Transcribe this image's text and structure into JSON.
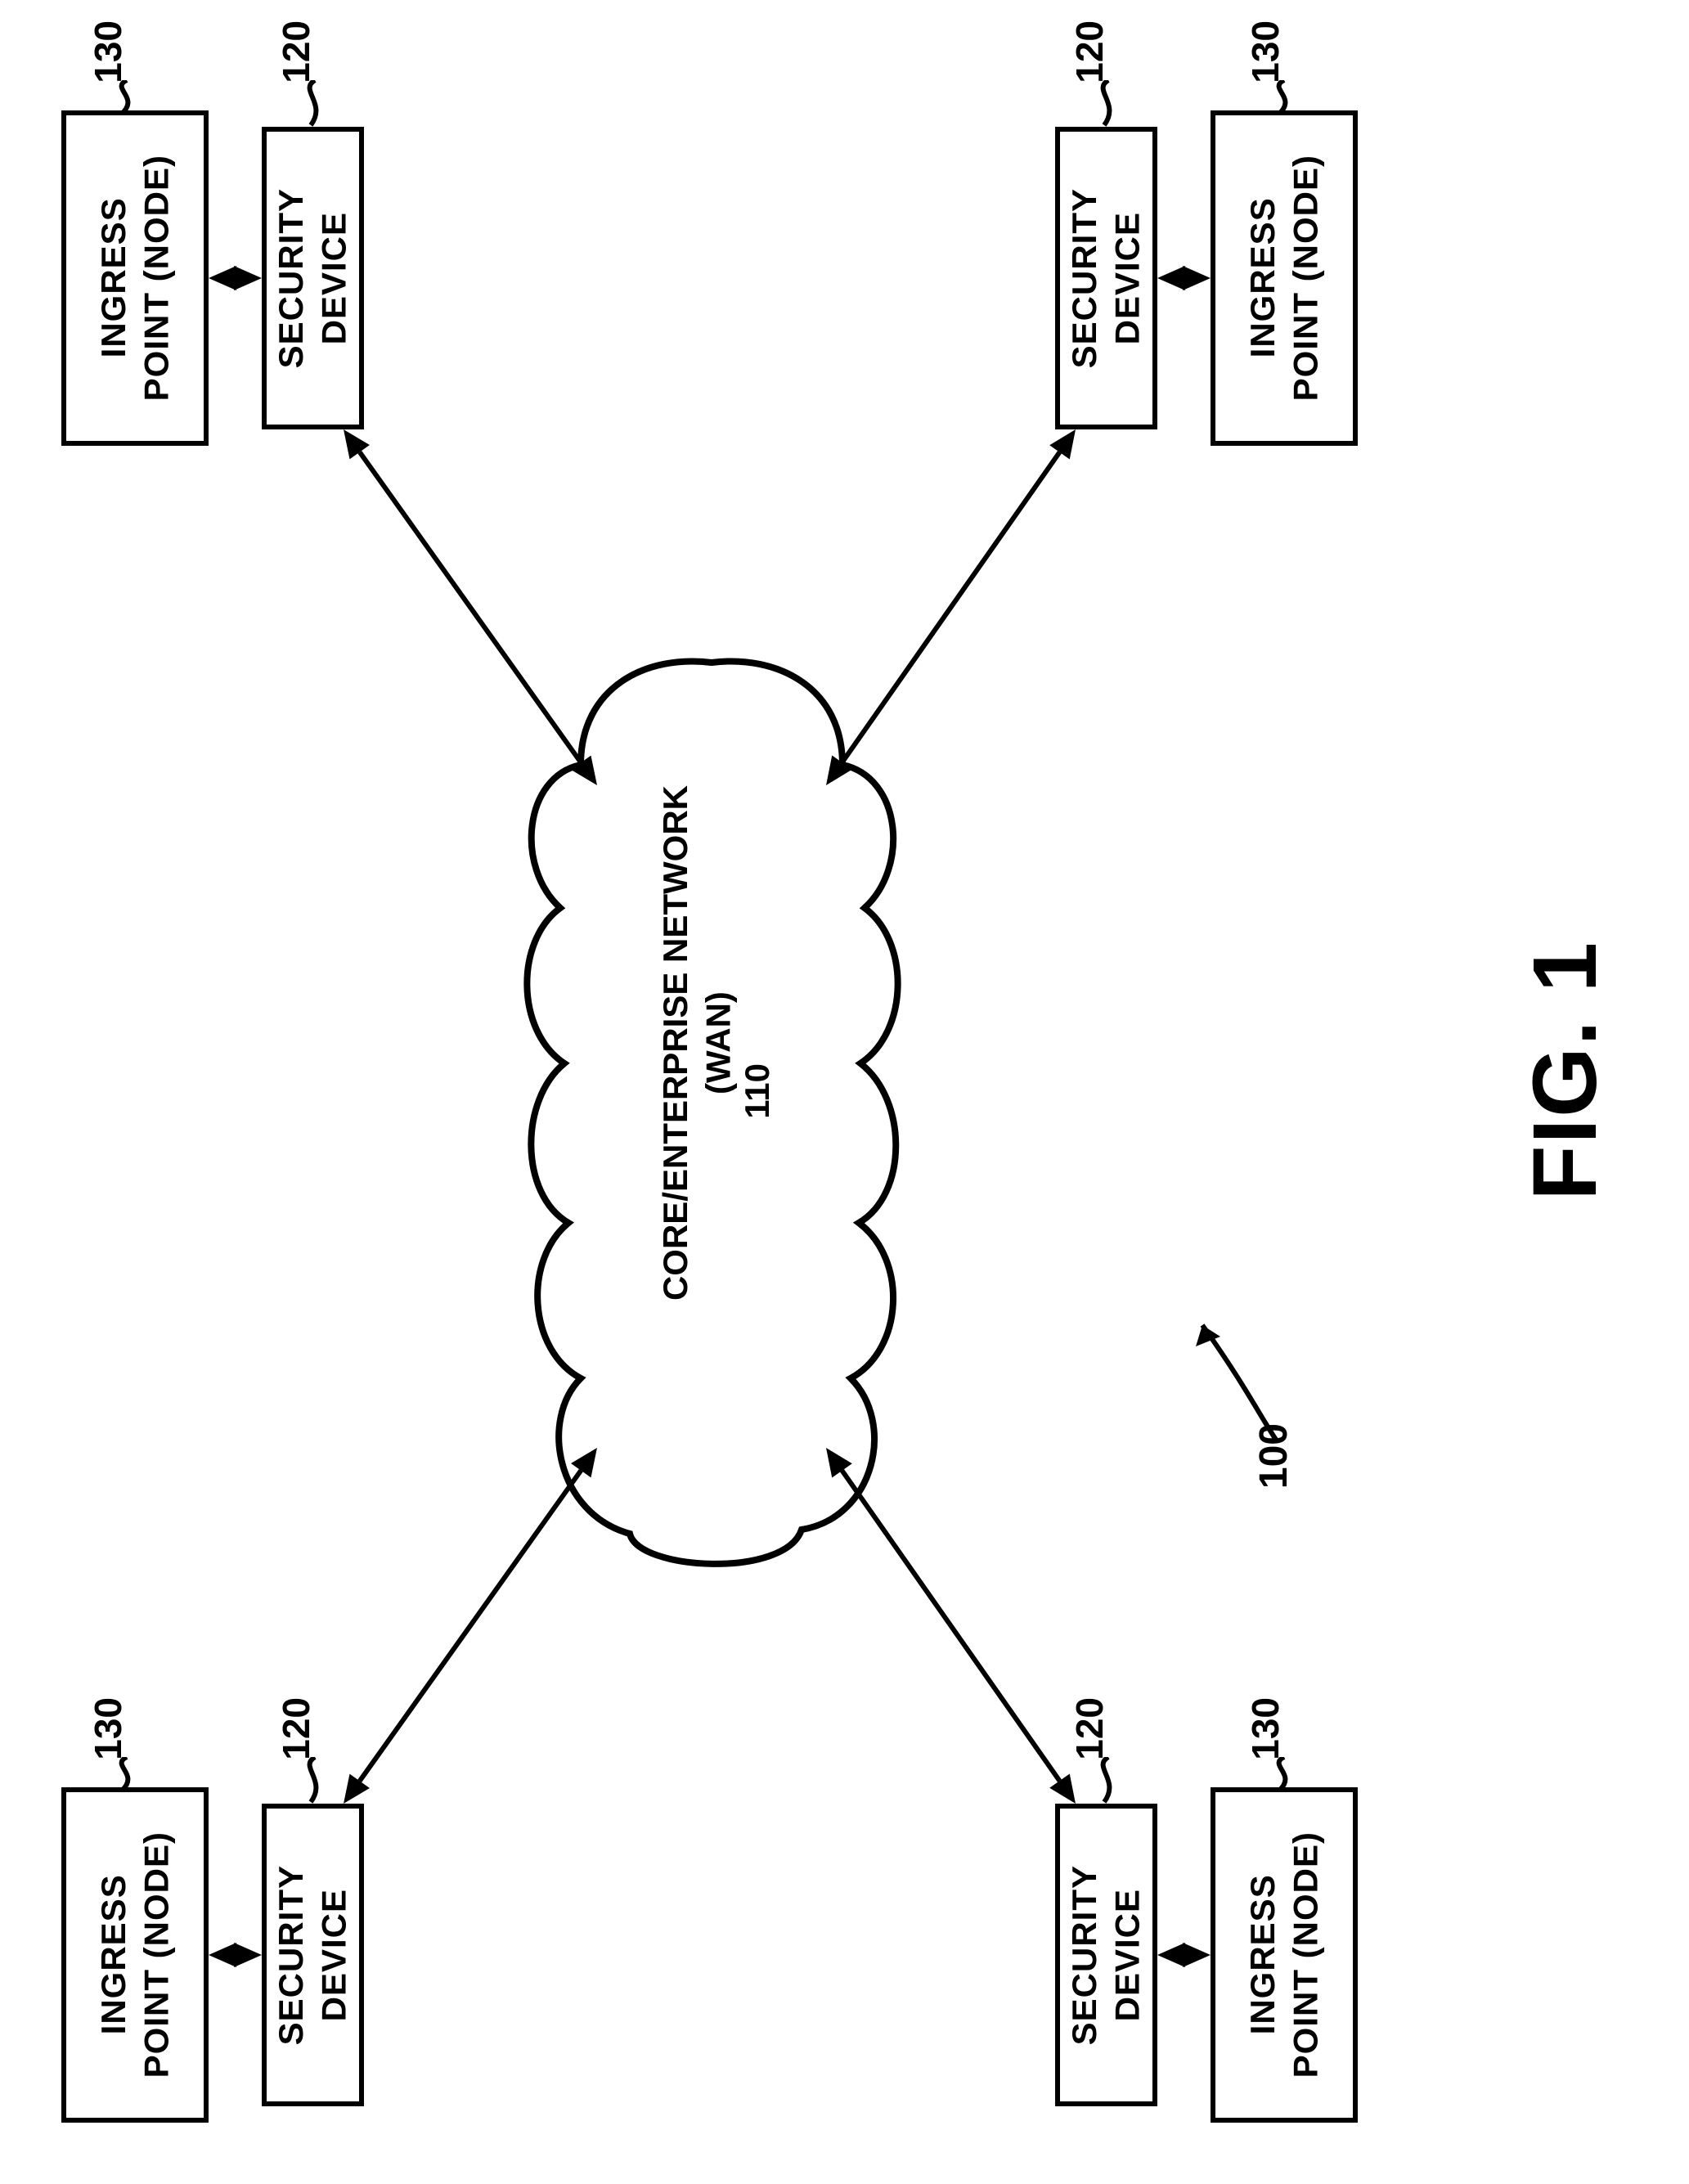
{
  "figure_label": "FIG. 1",
  "system_ref": "100",
  "cloud": {
    "line1": "CORE/ENTERPRISE NETWORK",
    "line2": "(WAN)",
    "ref": "110"
  },
  "ingress": {
    "label_line1": "INGRESS",
    "label_line2": "POINT (NODE)",
    "ref": "130"
  },
  "security": {
    "label_line1": "SECURITY",
    "label_line2": "DEVICE",
    "ref": "120"
  },
  "colors": {
    "stroke": "#000000",
    "bg": "#ffffff"
  },
  "stroke_width": 6,
  "arrow": {
    "head_len": 34,
    "head_half": 15
  }
}
